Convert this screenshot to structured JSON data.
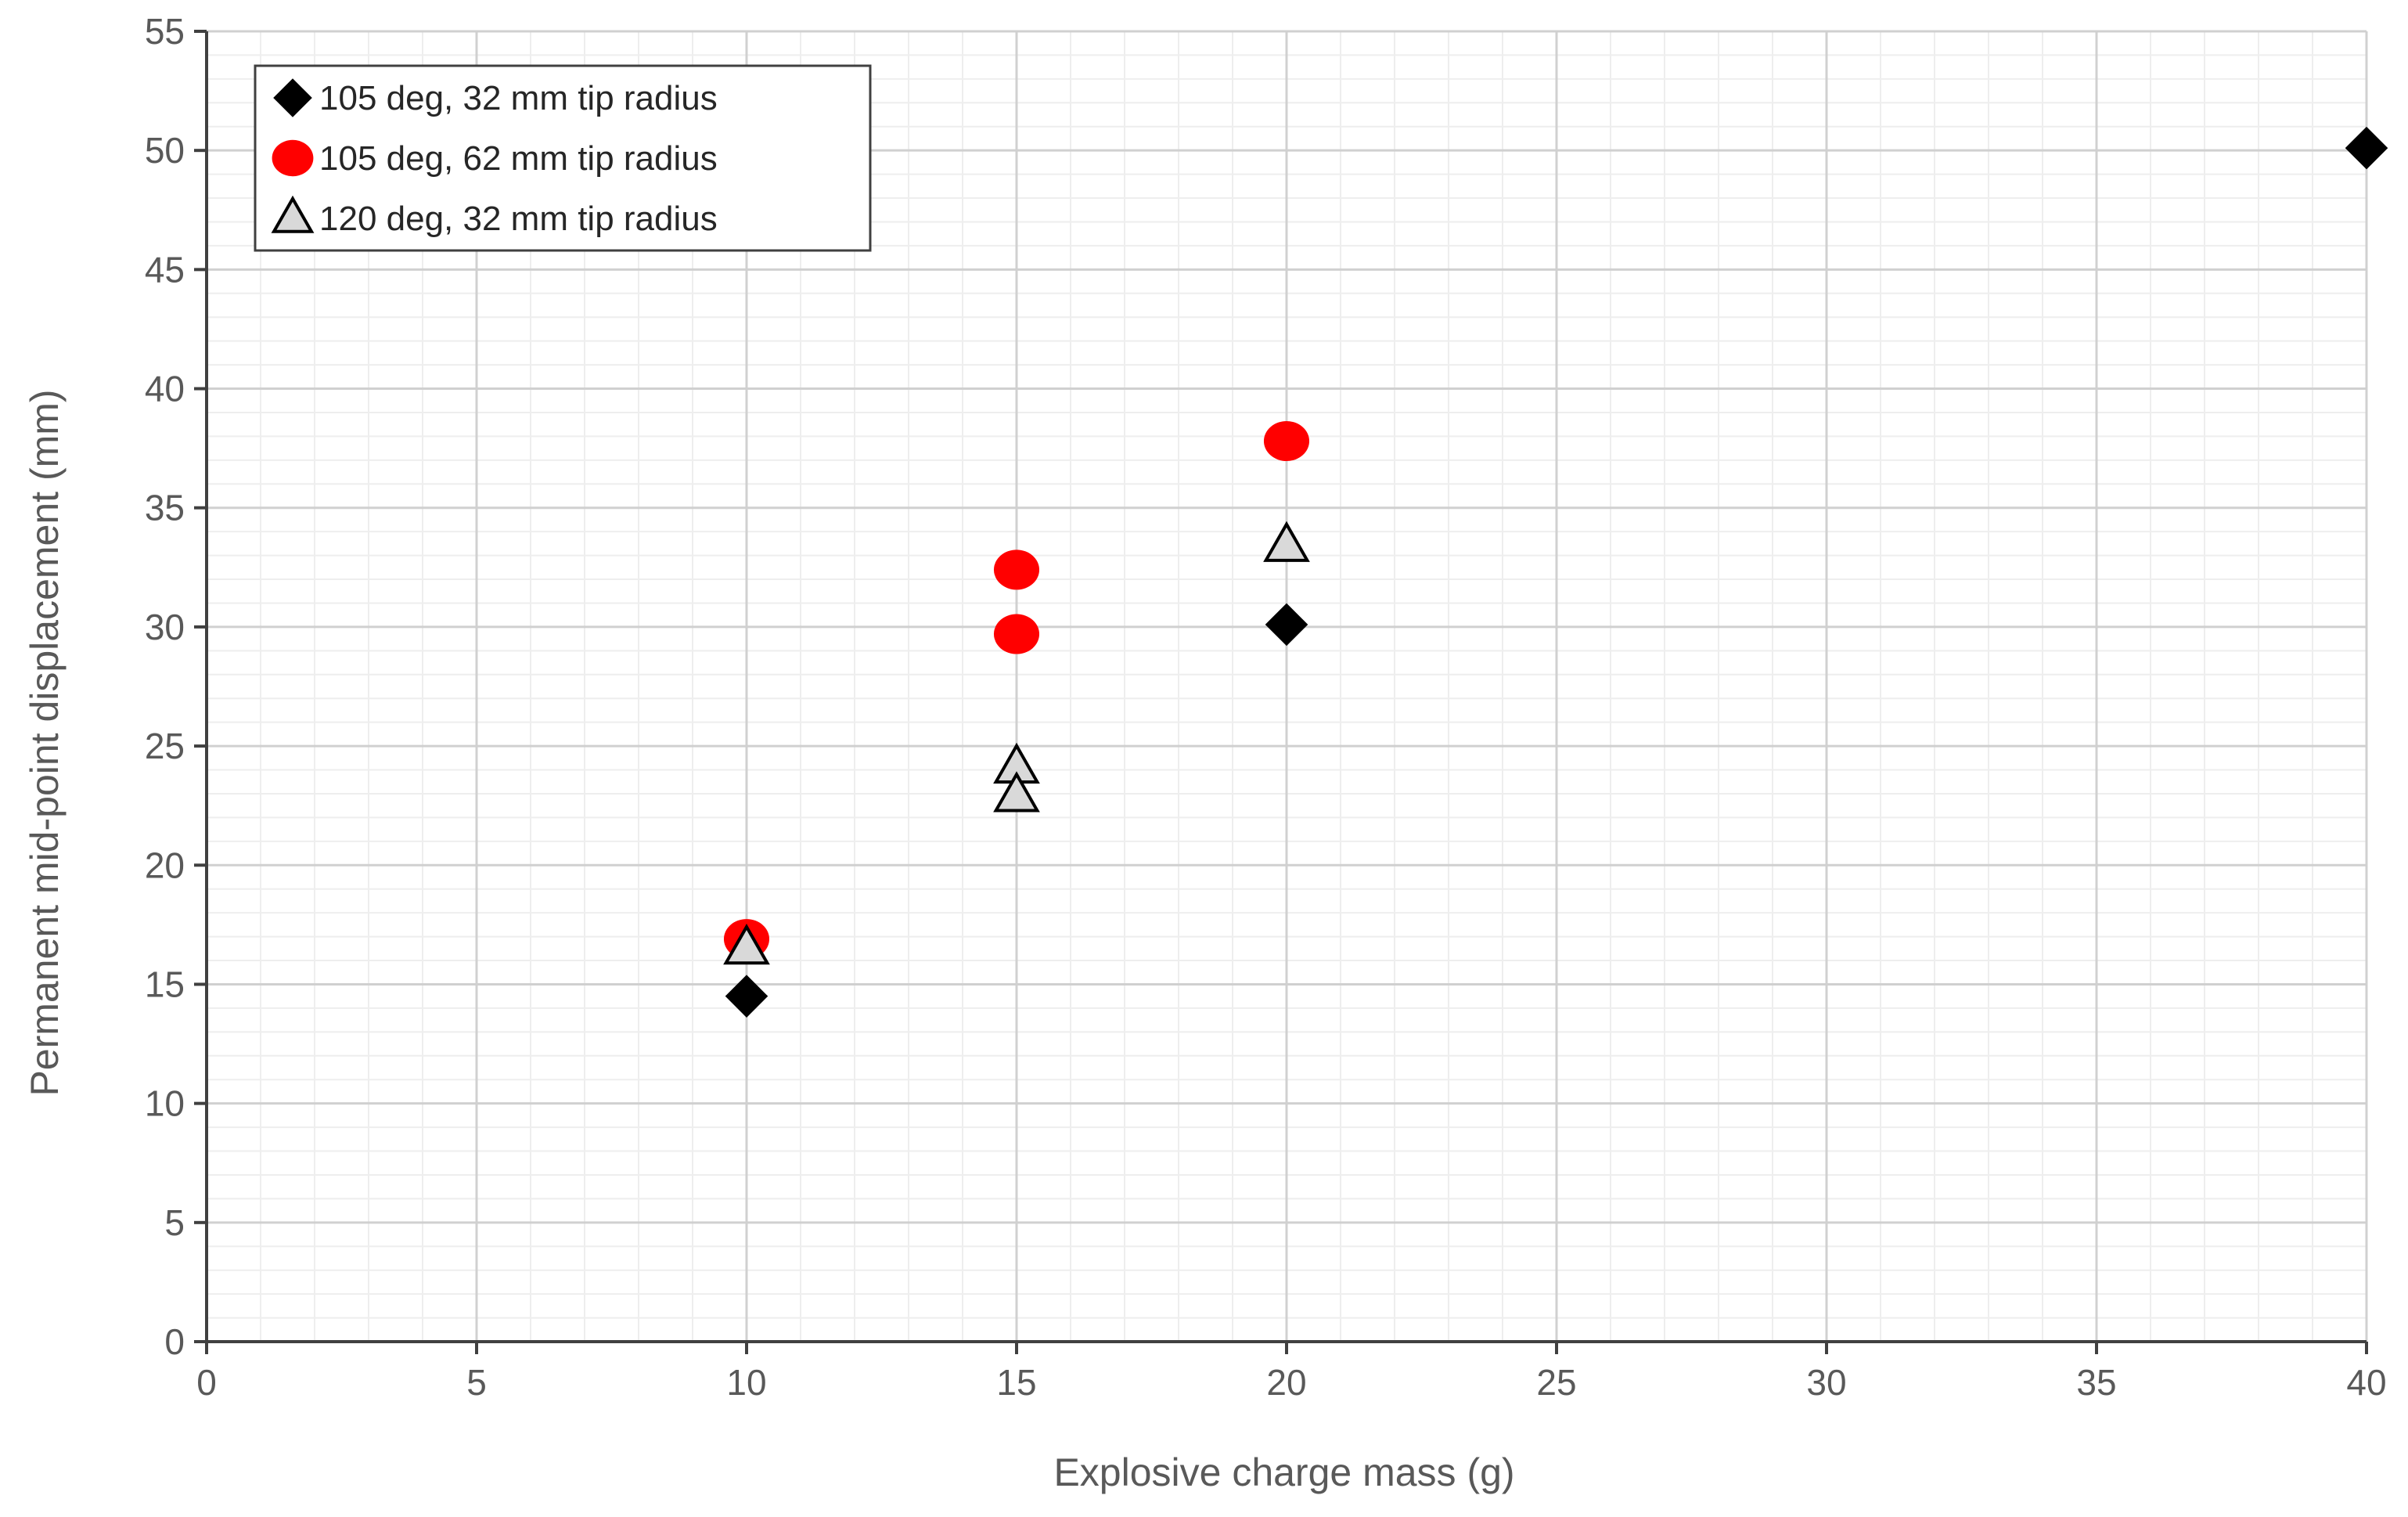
{
  "chart_data": {
    "type": "scatter",
    "xlabel": "Explosive charge mass (g)",
    "ylabel": "Permanent mid-point displacement (mm)",
    "xlim": [
      0,
      40
    ],
    "ylim": [
      0,
      55
    ],
    "x_ticks": [
      0,
      5,
      10,
      15,
      20,
      25,
      30,
      35,
      40
    ],
    "y_ticks": [
      0,
      5,
      10,
      15,
      20,
      25,
      30,
      35,
      40,
      45,
      50,
      55
    ],
    "x_minor_step": 1,
    "y_minor_step": 1,
    "grid": true,
    "legend_position": "top-left",
    "series": [
      {
        "name": "105 deg, 32 mm tip radius",
        "marker": "diamond",
        "color": "#000000",
        "points": [
          {
            "x": 10,
            "y": 14.5
          },
          {
            "x": 20,
            "y": 30.1
          },
          {
            "x": 40,
            "y": 50.1
          }
        ]
      },
      {
        "name": "105 deg, 62 mm tip radius",
        "marker": "circle",
        "color": "#ff0000",
        "points": [
          {
            "x": 10,
            "y": 16.9
          },
          {
            "x": 15,
            "y": 32.4
          },
          {
            "x": 15,
            "y": 29.7
          },
          {
            "x": 20,
            "y": 37.8
          }
        ]
      },
      {
        "name": "120 deg, 32 mm tip radius",
        "marker": "triangle",
        "color": "#d9d9d9",
        "stroke": "#000000",
        "points": [
          {
            "x": 10,
            "y": 16.5
          },
          {
            "x": 15,
            "y": 24.1
          },
          {
            "x": 15,
            "y": 22.9
          },
          {
            "x": 20,
            "y": 33.4
          }
        ]
      }
    ]
  }
}
